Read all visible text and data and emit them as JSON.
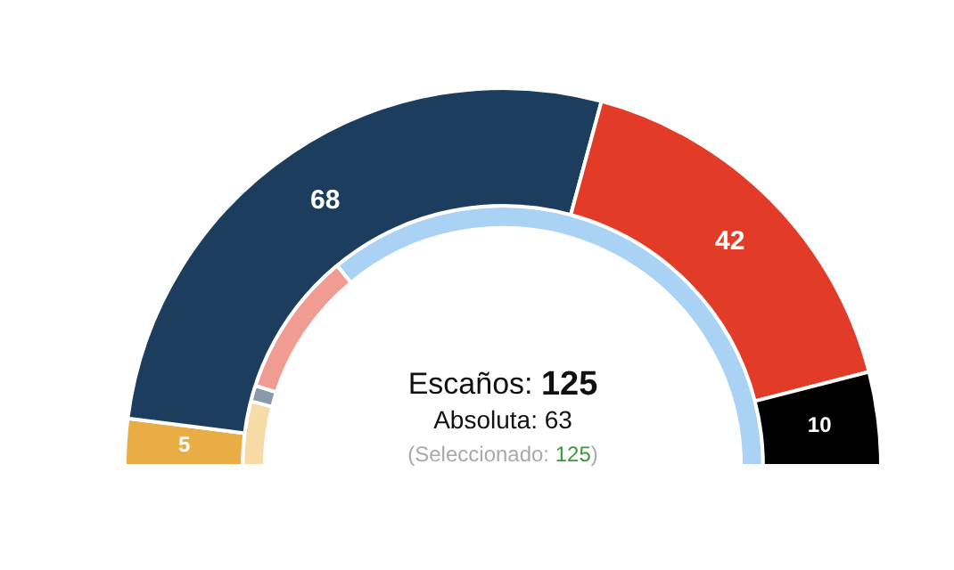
{
  "chart_data": {
    "type": "donut",
    "categories": [
      null,
      null,
      null,
      null
    ],
    "series": [
      {
        "colors": [
          "#e8ad45",
          "#1c3d5e",
          "#e23b27",
          "#000000"
        ],
        "values": [
          5,
          68,
          42,
          10
        ],
        "value_labels": [
          "5",
          "68",
          "42",
          "10"
        ]
      },
      {
        "colors": [
          "#f7dba6",
          "#8a9aaa",
          "#f09c92",
          "#a9d2f5"
        ],
        "values": [
          8,
          2,
          18,
          72
        ]
      }
    ],
    "annotations": [
      "Escaños: 125",
      "Absoluta: 63",
      "(Seleccionado: 125)"
    ],
    "legend": false
  }
}
